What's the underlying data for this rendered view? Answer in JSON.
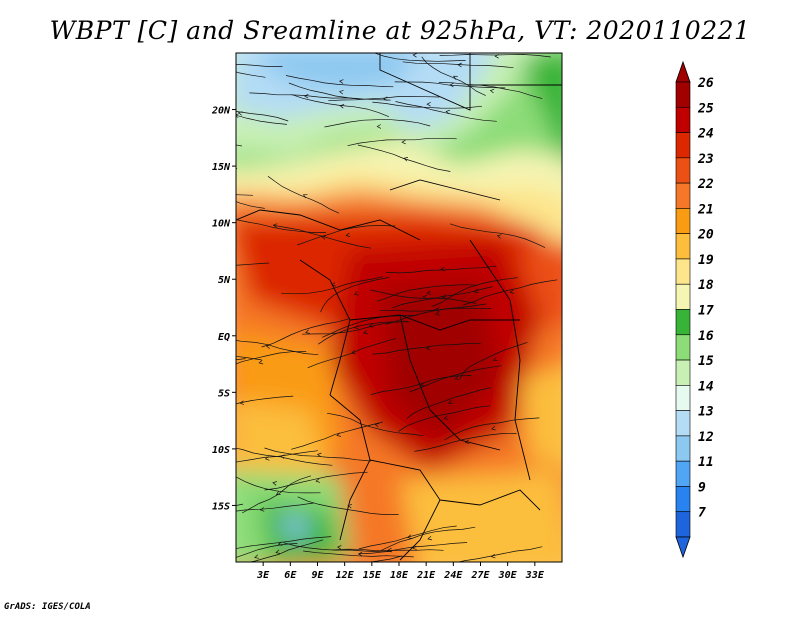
{
  "title": "WBPT [C] and Sreamline at 925hPa, VT: 2020110221",
  "credit": "GrADS: IGES/COLA",
  "map": {
    "lon_range": [
      0,
      36
    ],
    "lat_range": [
      -20,
      25
    ],
    "x_ticks": [
      {
        "value": 3,
        "label": "3E"
      },
      {
        "value": 6,
        "label": "6E"
      },
      {
        "value": 9,
        "label": "9E"
      },
      {
        "value": 12,
        "label": "12E"
      },
      {
        "value": 15,
        "label": "15E"
      },
      {
        "value": 18,
        "label": "18E"
      },
      {
        "value": 21,
        "label": "21E"
      },
      {
        "value": 24,
        "label": "24E"
      },
      {
        "value": 27,
        "label": "27E"
      },
      {
        "value": 30,
        "label": "30E"
      },
      {
        "value": 33,
        "label": "33E"
      }
    ],
    "y_ticks": [
      {
        "value": 20,
        "label": "20N"
      },
      {
        "value": 15,
        "label": "15N"
      },
      {
        "value": 10,
        "label": "10N"
      },
      {
        "value": 5,
        "label": "5N"
      },
      {
        "value": 0,
        "label": "EQ"
      },
      {
        "value": -5,
        "label": "5S"
      },
      {
        "value": -10,
        "label": "10S"
      },
      {
        "value": -15,
        "label": "15S"
      }
    ]
  },
  "colorbar": {
    "levels": [
      {
        "label": "26",
        "color": "#a00000"
      },
      {
        "label": "25",
        "color": "#c00000"
      },
      {
        "label": "24",
        "color": "#dc2800"
      },
      {
        "label": "23",
        "color": "#eb5014"
      },
      {
        "label": "22",
        "color": "#f57828"
      },
      {
        "label": "21",
        "color": "#fa9b14"
      },
      {
        "label": "20",
        "color": "#fcbe3c"
      },
      {
        "label": "19",
        "color": "#fde58c"
      },
      {
        "label": "18",
        "color": "#f5f5b4"
      },
      {
        "label": "17",
        "color": "#37b437"
      },
      {
        "label": "16",
        "color": "#8cdc78"
      },
      {
        "label": "15",
        "color": "#c8f0b4"
      },
      {
        "label": "14",
        "color": "#e6faf0"
      },
      {
        "label": "13",
        "color": "#b4dcf5"
      },
      {
        "label": "12",
        "color": "#8cc8f0"
      },
      {
        "label": "11",
        "color": "#50a5f5"
      },
      {
        "label": "9",
        "color": "#2882f0"
      },
      {
        "label": "7",
        "color": "#1e64dc"
      }
    ],
    "top_color": "#a00000",
    "bottom_color": "#1e64dc"
  }
}
